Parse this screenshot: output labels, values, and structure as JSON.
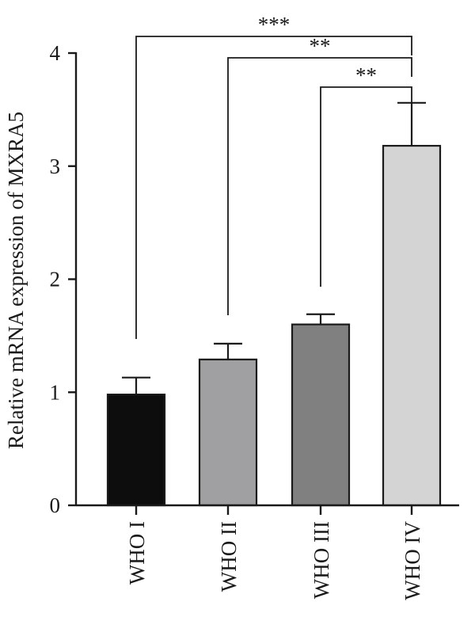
{
  "chart_data": {
    "type": "bar",
    "title": "",
    "xlabel": "",
    "ylabel": "Relative mRNA expression of MXRA5",
    "ylim": [
      0,
      4
    ],
    "yticks": [
      0,
      1,
      2,
      3,
      4
    ],
    "categories": [
      "WHO I",
      "WHO II",
      "WHO III",
      "WHO IV"
    ],
    "values": [
      0.98,
      1.29,
      1.6,
      3.18
    ],
    "errors": [
      0.15,
      0.14,
      0.09,
      0.38
    ],
    "bar_colors": [
      "#0d0d0d",
      "#a0a0a2",
      "#7f807f",
      "#d3d4d3"
    ],
    "grid": false,
    "legend": "none",
    "comparisons": [
      {
        "from": "WHO I",
        "to": "WHO IV",
        "label": "***"
      },
      {
        "from": "WHO II",
        "to": "WHO IV",
        "label": "**"
      },
      {
        "from": "WHO III",
        "to": "WHO IV",
        "label": "**"
      }
    ]
  }
}
